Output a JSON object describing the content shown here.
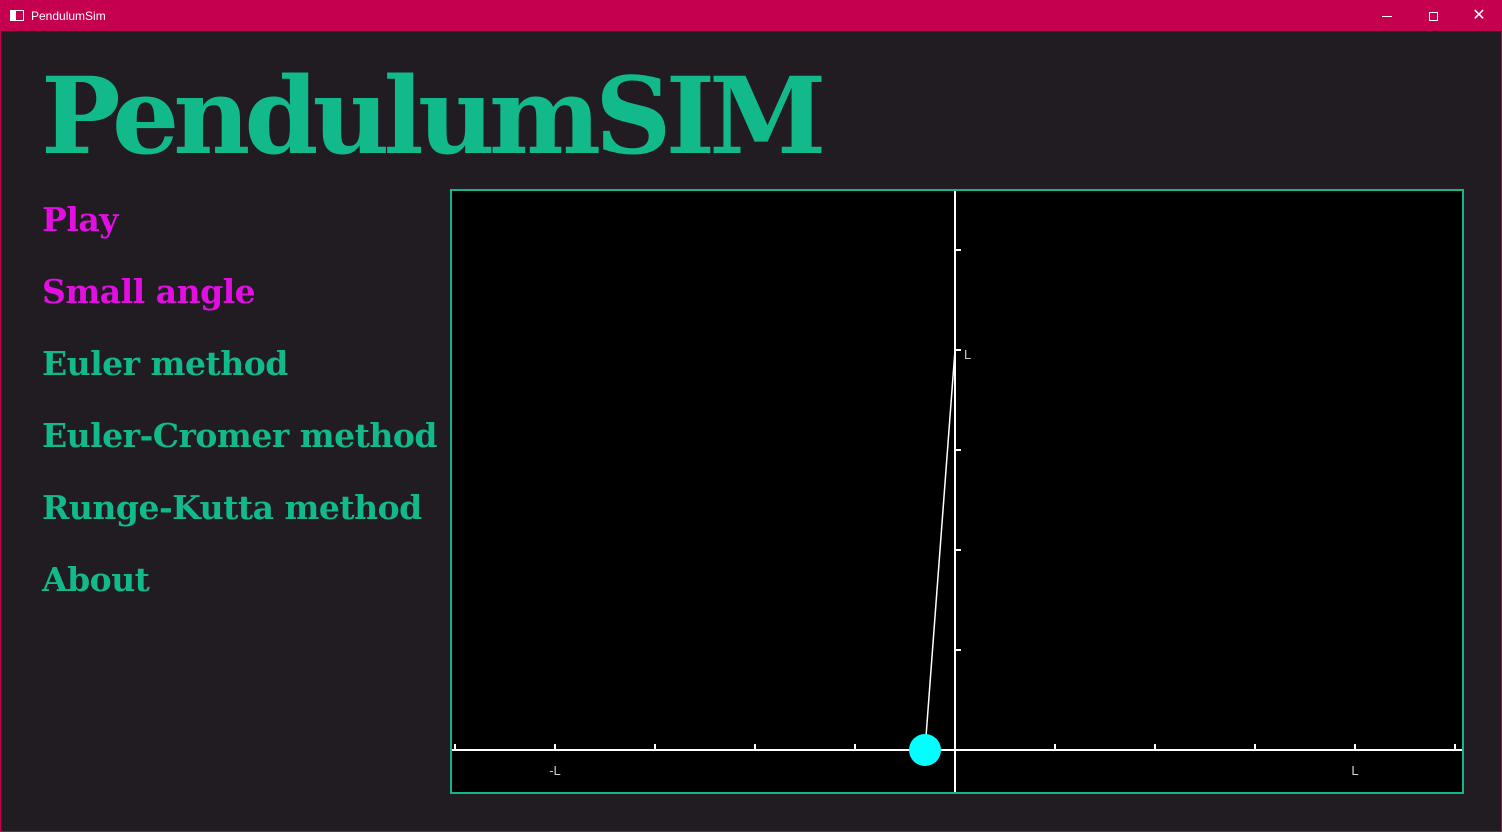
{
  "window": {
    "title": "PendulumSim",
    "controls": {
      "minimize": "minimize-icon",
      "maximize": "maximize-icon",
      "close": "close-icon"
    },
    "colors": {
      "titlebar": "#c4004f",
      "background": "#201c22"
    }
  },
  "app": {
    "title": "PendulumSIM",
    "accent_color": "#11b98b",
    "active_color": "#e20ee2"
  },
  "menu": {
    "items": [
      {
        "label": "Play",
        "active": true
      },
      {
        "label": "Small angle",
        "active": true
      },
      {
        "label": "Euler method",
        "active": false
      },
      {
        "label": "Euler-Cromer method",
        "active": false
      },
      {
        "label": "Runge-Kutta method",
        "active": false
      },
      {
        "label": "About",
        "active": false
      }
    ]
  },
  "simulation": {
    "axis_labels": {
      "x_neg": "-L",
      "x_pos": "L",
      "y_pos": "L"
    },
    "pivot": {
      "x": 0,
      "y": 4
    },
    "bob": {
      "x": -0.3,
      "y": 0
    },
    "x_range": [
      -5,
      5
    ],
    "y_range": [
      0,
      6
    ],
    "bob_color": "#00ffff",
    "frame_color": "#14b48c"
  }
}
